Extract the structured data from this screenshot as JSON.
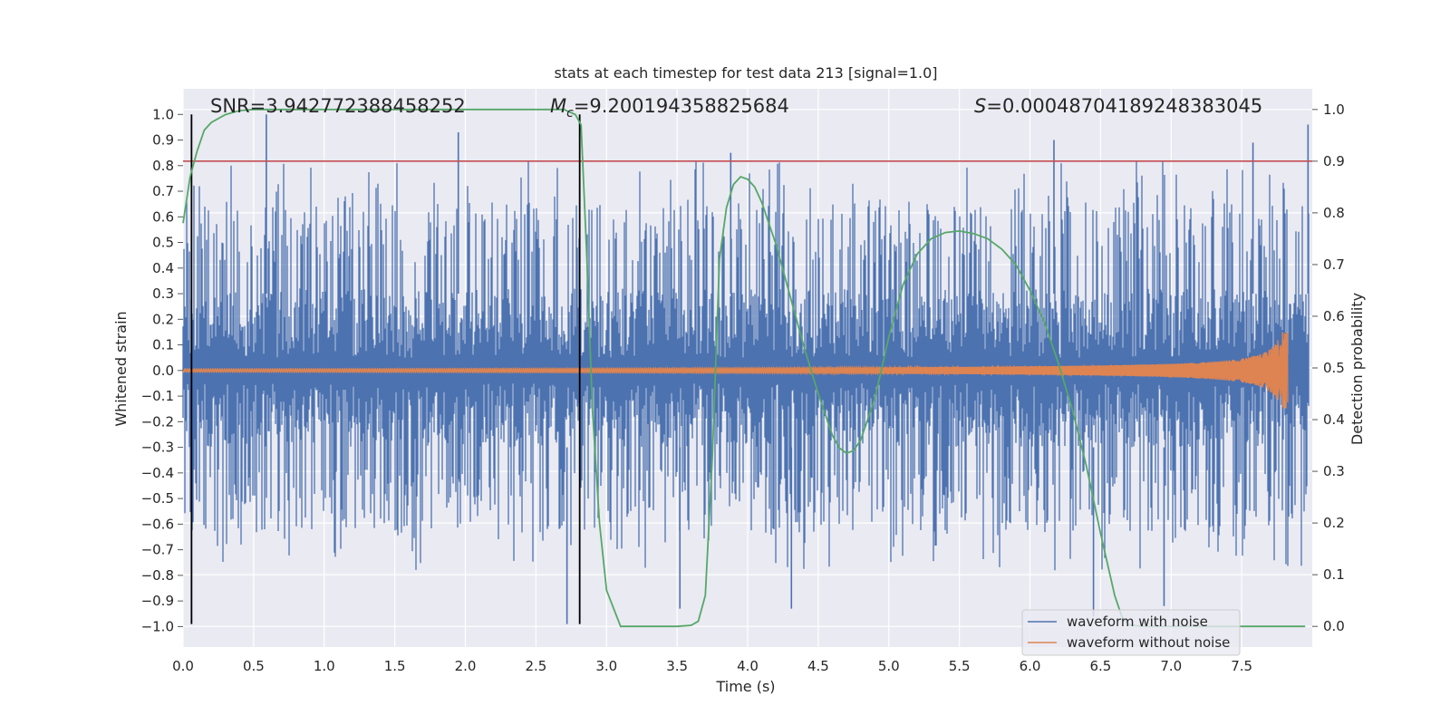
{
  "chart_data": {
    "type": "line",
    "title": "stats at each timestep for test data 213 [signal=1.0]",
    "xlabel": "Time (s)",
    "ylabel": "Whitened strain",
    "y2label": "Detection probability",
    "xlim": [
      0.0,
      8.0
    ],
    "ylim": [
      -1.08,
      1.1
    ],
    "y2lim": [
      -0.04,
      1.04
    ],
    "xticks": [
      "0.0",
      "0.5",
      "1.0",
      "1.5",
      "2.0",
      "2.5",
      "3.0",
      "3.5",
      "4.0",
      "4.5",
      "5.0",
      "5.5",
      "6.0",
      "6.5",
      "7.0",
      "7.5"
    ],
    "xtick_values": [
      0.0,
      0.5,
      1.0,
      1.5,
      2.0,
      2.5,
      3.0,
      3.5,
      4.0,
      4.5,
      5.0,
      5.5,
      6.0,
      6.5,
      7.0,
      7.5
    ],
    "yticks": [
      "1.0",
      "0.9",
      "0.8",
      "0.7",
      "0.6",
      "0.5",
      "0.4",
      "0.3",
      "0.2",
      "0.1",
      "0.0",
      "−0.1",
      "−0.2",
      "−0.3",
      "−0.4",
      "−0.5",
      "−0.6",
      "−0.7",
      "−0.8",
      "−0.9",
      "−1.0"
    ],
    "ytick_values": [
      1.0,
      0.9,
      0.8,
      0.7,
      0.6,
      0.5,
      0.4,
      0.3,
      0.2,
      0.1,
      0.0,
      -0.1,
      -0.2,
      -0.3,
      -0.4,
      -0.5,
      -0.6,
      -0.7,
      -0.8,
      -0.9,
      -1.0
    ],
    "y2ticks": [
      "1.0",
      "0.9",
      "0.8",
      "0.7",
      "0.6",
      "0.5",
      "0.4",
      "0.3",
      "0.2",
      "0.1",
      "0.0"
    ],
    "y2tick_values": [
      1.0,
      0.9,
      0.8,
      0.7,
      0.6,
      0.5,
      0.4,
      0.3,
      0.2,
      0.1,
      0.0
    ],
    "annotations": {
      "snr": "SNR=3.942772388458252",
      "mc_symbol": "M",
      "mc_sub": "c",
      "mc_value": "=9.200194358825684",
      "s_symbol": "S",
      "s_value": "=0.00048704189248383045"
    },
    "threshold": {
      "y2": 0.9,
      "color": "#c44e52"
    },
    "vertical_lines": [
      0.06,
      2.81
    ],
    "series": [
      {
        "name": "waveform with noise",
        "color": "#4c72b0",
        "axis": "left",
        "x_range": [
          0.0,
          7.98
        ],
        "envelope_upper_typical": 0.6,
        "envelope_lower_typical": -0.55,
        "peaks_upper": [
          [
            0.59,
            1.0
          ],
          [
            1.95,
            0.93
          ],
          [
            3.88,
            0.85
          ],
          [
            6.17,
            0.9
          ],
          [
            7.58,
            0.89
          ],
          [
            7.97,
            0.96
          ]
        ],
        "peaks_lower": [
          [
            2.72,
            -0.99
          ],
          [
            3.52,
            -0.93
          ],
          [
            4.31,
            -0.93
          ],
          [
            6.45,
            -0.96
          ],
          [
            6.95,
            -0.92
          ]
        ]
      },
      {
        "name": "waveform without noise",
        "color": "#dd8452",
        "axis": "left",
        "type": "chirp",
        "x_range": [
          0.0,
          7.83
        ],
        "peak_amplitude": 0.15
      },
      {
        "name": "detection probability",
        "color": "#55a868",
        "axis": "right",
        "x": [
          0.0,
          0.05,
          0.1,
          0.15,
          0.2,
          0.3,
          0.4,
          0.5,
          1.0,
          1.5,
          2.0,
          2.5,
          2.7,
          2.78,
          2.82,
          2.86,
          2.9,
          2.95,
          3.0,
          3.1,
          3.3,
          3.5,
          3.6,
          3.65,
          3.7,
          3.75,
          3.8,
          3.85,
          3.9,
          3.95,
          4.0,
          4.05,
          4.1,
          4.2,
          4.3,
          4.4,
          4.5,
          4.6,
          4.65,
          4.7,
          4.75,
          4.8,
          4.9,
          5.0,
          5.1,
          5.2,
          5.3,
          5.4,
          5.5,
          5.6,
          5.7,
          5.8,
          5.9,
          6.0,
          6.1,
          6.2,
          6.3,
          6.4,
          6.5,
          6.6,
          6.65,
          6.7,
          6.8,
          7.0,
          7.5,
          7.95
        ],
        "y": [
          0.78,
          0.87,
          0.92,
          0.96,
          0.975,
          0.99,
          0.998,
          1.0,
          1.0,
          1.0,
          1.0,
          1.0,
          1.0,
          0.99,
          0.97,
          0.72,
          0.42,
          0.2,
          0.07,
          0.0,
          0.0,
          0.0,
          0.002,
          0.01,
          0.06,
          0.33,
          0.71,
          0.81,
          0.855,
          0.87,
          0.865,
          0.85,
          0.82,
          0.74,
          0.64,
          0.54,
          0.45,
          0.37,
          0.345,
          0.335,
          0.34,
          0.36,
          0.44,
          0.56,
          0.66,
          0.72,
          0.75,
          0.762,
          0.765,
          0.76,
          0.75,
          0.73,
          0.7,
          0.65,
          0.59,
          0.51,
          0.42,
          0.31,
          0.18,
          0.06,
          0.02,
          0.003,
          0.0,
          0.0,
          0.0,
          0.0
        ]
      }
    ],
    "legend": {
      "placement": "lower-right",
      "entries": [
        "waveform with noise",
        "waveform without noise"
      ]
    },
    "colors": {
      "plot_background": "#eaeaf2",
      "grid": "#ffffff",
      "vline": "#000000"
    }
  }
}
